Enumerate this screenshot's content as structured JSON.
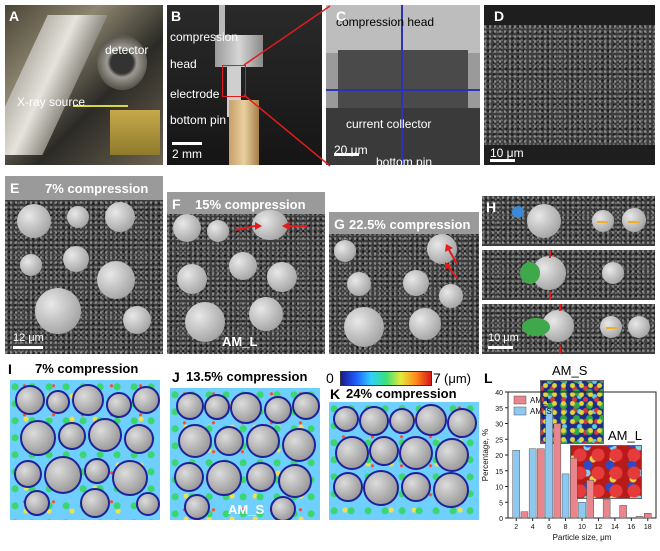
{
  "panels": {
    "A": {
      "label": "A",
      "detector": "detector",
      "xray_source": "X-ray source"
    },
    "B": {
      "label": "B",
      "compression": "compression",
      "head": "head",
      "electrode": "electrode",
      "bottom_pin": "bottom pin",
      "scale": "2 mm"
    },
    "C": {
      "label": "C",
      "compression_head": "compression head",
      "current_collector": "current collector",
      "bottom_pin": "bottom pin",
      "scale": "20 μm"
    },
    "D": {
      "label": "D",
      "scale": "10 μm"
    },
    "E": {
      "label": "E",
      "title": "7% compression",
      "scale": "12 μm"
    },
    "F": {
      "label": "F",
      "title": "15% compression",
      "sample": "AM_L"
    },
    "G": {
      "label": "G",
      "title": "22.5% compression"
    },
    "H": {
      "label": "H",
      "scale": "10 μm"
    },
    "I": {
      "label": "I",
      "title": "7% compression"
    },
    "J": {
      "label": "J",
      "title": "13.5% compression",
      "sample": "AM_S"
    },
    "K": {
      "label": "K",
      "title": "24% compression"
    },
    "colorbar": {
      "min": "0",
      "max": "7",
      "unit": "(μm)"
    },
    "L": {
      "label": "L",
      "am_s_label": "AM_S",
      "am_l_label": "AM_L"
    }
  },
  "chart_data": {
    "type": "bar",
    "xlabel": "Particle size, μm",
    "ylabel": "Percentage, %",
    "ylim": [
      0,
      40
    ],
    "yticks": [
      "0",
      "5",
      "10",
      "15",
      "20",
      "25",
      "30",
      "35",
      "40"
    ],
    "xticks": [
      "2",
      "4",
      "6",
      "8",
      "10",
      "12",
      "14",
      "16",
      "18"
    ],
    "x": [
      2,
      3,
      4,
      5,
      6,
      7,
      8,
      9,
      10,
      11,
      12,
      13,
      14,
      15,
      16,
      17,
      18
    ],
    "series": [
      {
        "name": "AM_L",
        "color": "#e8858d",
        "values": [
          0,
          2,
          0,
          22,
          0,
          30,
          0,
          19,
          0,
          12,
          0,
          6,
          0,
          4,
          0,
          0.5,
          1.5
        ]
      },
      {
        "name": "AM_S",
        "color": "#8ec8f0",
        "values": [
          21.5,
          0,
          22,
          0,
          35,
          0,
          14,
          0,
          5,
          0,
          0,
          0,
          0,
          0,
          0,
          0,
          0
        ]
      }
    ]
  }
}
